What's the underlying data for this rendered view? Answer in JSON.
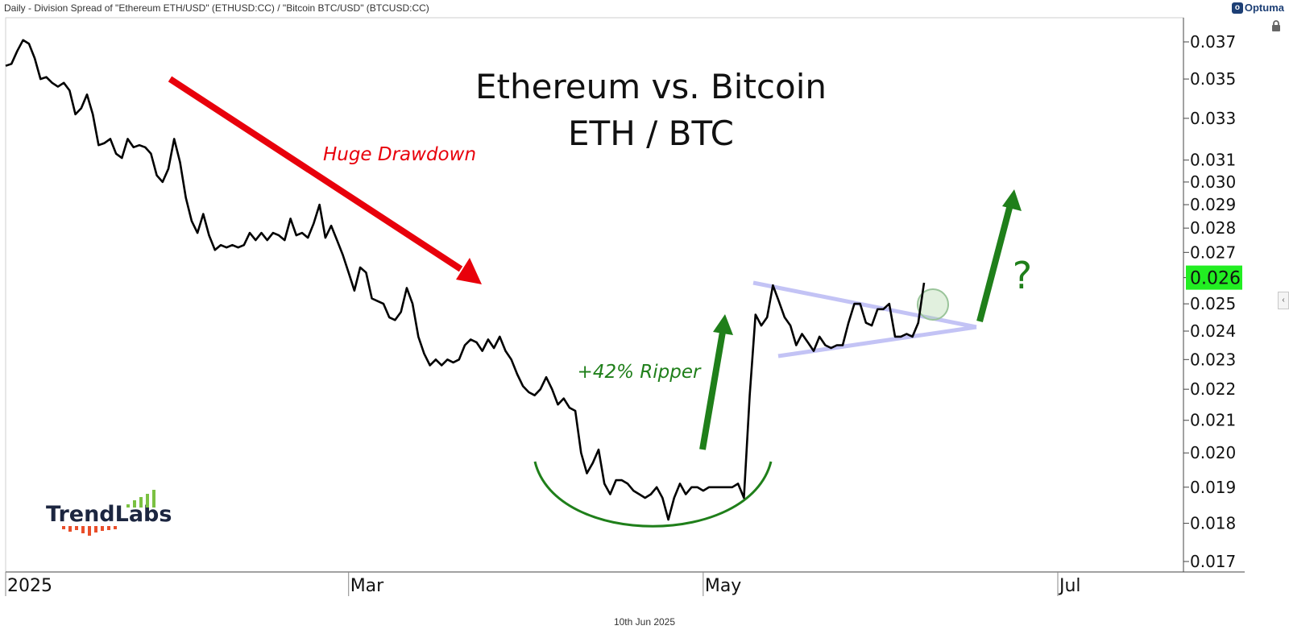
{
  "header": {
    "description": "Daily - Division Spread of \"Ethereum ETH/USD\" (ETHUSD:CC) / \"Bitcoin BTC/USD\" (BTCUSD:CC)",
    "brand": "Optuma",
    "footer_date": "10th Jun 2025"
  },
  "logo": {
    "text": "TrendLabs"
  },
  "chart_data": {
    "type": "line",
    "title": "Ethereum vs. Bitcoin",
    "subtitle": "ETH / BTC",
    "x_axis": {
      "type": "date",
      "labels": [
        "2025",
        "Mar",
        "May",
        "Jul"
      ],
      "label_dates": [
        "2025-01-01",
        "2025-03-01",
        "2025-05-01",
        "2025-07-01"
      ]
    },
    "y_axis": {
      "scale": "log",
      "ticks": [
        "0.017",
        "0.018",
        "0.019",
        "0.020",
        "0.021",
        "0.022",
        "0.023",
        "0.024",
        "0.025",
        "0.026",
        "0.027",
        "0.028",
        "0.029",
        "0.030",
        "0.031",
        "0.033",
        "0.035",
        "0.037"
      ],
      "range": [
        0.0167,
        0.0385
      ]
    },
    "last_value": "0.026",
    "series": [
      {
        "points": [
          [
            "2025-01-01",
            0.0357
          ],
          [
            "2025-01-02",
            0.0358
          ],
          [
            "2025-01-03",
            0.0365
          ],
          [
            "2025-01-04",
            0.0371
          ],
          [
            "2025-01-05",
            0.0369
          ],
          [
            "2025-01-06",
            0.0361
          ],
          [
            "2025-01-07",
            0.035
          ],
          [
            "2025-01-08",
            0.0351
          ],
          [
            "2025-01-09",
            0.0348
          ],
          [
            "2025-01-10",
            0.0346
          ],
          [
            "2025-01-11",
            0.0348
          ],
          [
            "2025-01-12",
            0.0344
          ],
          [
            "2025-01-13",
            0.0332
          ],
          [
            "2025-01-14",
            0.0335
          ],
          [
            "2025-01-15",
            0.0342
          ],
          [
            "2025-01-16",
            0.0332
          ],
          [
            "2025-01-17",
            0.0317
          ],
          [
            "2025-01-18",
            0.0318
          ],
          [
            "2025-01-19",
            0.032
          ],
          [
            "2025-01-20",
            0.0313
          ],
          [
            "2025-01-21",
            0.0311
          ],
          [
            "2025-01-22",
            0.032
          ],
          [
            "2025-01-23",
            0.0316
          ],
          [
            "2025-01-24",
            0.0317
          ],
          [
            "2025-01-25",
            0.0316
          ],
          [
            "2025-01-26",
            0.0313
          ],
          [
            "2025-01-27",
            0.0303
          ],
          [
            "2025-01-28",
            0.03
          ],
          [
            "2025-01-29",
            0.0306
          ],
          [
            "2025-01-30",
            0.032
          ],
          [
            "2025-01-31",
            0.0309
          ],
          [
            "2025-02-01",
            0.0293
          ],
          [
            "2025-02-02",
            0.0283
          ],
          [
            "2025-02-03",
            0.0278
          ],
          [
            "2025-02-04",
            0.0286
          ],
          [
            "2025-02-05",
            0.0277
          ],
          [
            "2025-02-06",
            0.0271
          ],
          [
            "2025-02-07",
            0.0273
          ],
          [
            "2025-02-08",
            0.0272
          ],
          [
            "2025-02-09",
            0.0273
          ],
          [
            "2025-02-10",
            0.0272
          ],
          [
            "2025-02-11",
            0.0273
          ],
          [
            "2025-02-12",
            0.0278
          ],
          [
            "2025-02-13",
            0.0275
          ],
          [
            "2025-02-14",
            0.0278
          ],
          [
            "2025-02-15",
            0.0275
          ],
          [
            "2025-02-16",
            0.0278
          ],
          [
            "2025-02-17",
            0.0277
          ],
          [
            "2025-02-18",
            0.0275
          ],
          [
            "2025-02-19",
            0.0284
          ],
          [
            "2025-02-20",
            0.0277
          ],
          [
            "2025-02-21",
            0.0278
          ],
          [
            "2025-02-22",
            0.0276
          ],
          [
            "2025-02-23",
            0.0282
          ],
          [
            "2025-02-24",
            0.029
          ],
          [
            "2025-02-25",
            0.0276
          ],
          [
            "2025-02-26",
            0.0281
          ],
          [
            "2025-02-27",
            0.0275
          ],
          [
            "2025-02-28",
            0.0269
          ],
          [
            "2025-03-01",
            0.0262
          ],
          [
            "2025-03-02",
            0.0255
          ],
          [
            "2025-03-03",
            0.0264
          ],
          [
            "2025-03-04",
            0.0262
          ],
          [
            "2025-03-05",
            0.0252
          ],
          [
            "2025-03-06",
            0.0251
          ],
          [
            "2025-03-07",
            0.025
          ],
          [
            "2025-03-08",
            0.0245
          ],
          [
            "2025-03-09",
            0.0244
          ],
          [
            "2025-03-10",
            0.0247
          ],
          [
            "2025-03-11",
            0.0256
          ],
          [
            "2025-03-12",
            0.025
          ],
          [
            "2025-03-13",
            0.0238
          ],
          [
            "2025-03-14",
            0.0232
          ],
          [
            "2025-03-15",
            0.0228
          ],
          [
            "2025-03-16",
            0.023
          ],
          [
            "2025-03-17",
            0.0228
          ],
          [
            "2025-03-18",
            0.023
          ],
          [
            "2025-03-19",
            0.0229
          ],
          [
            "2025-03-20",
            0.023
          ],
          [
            "2025-03-21",
            0.0235
          ],
          [
            "2025-03-22",
            0.0237
          ],
          [
            "2025-03-23",
            0.0236
          ],
          [
            "2025-03-24",
            0.0233
          ],
          [
            "2025-03-25",
            0.0237
          ],
          [
            "2025-03-26",
            0.0234
          ],
          [
            "2025-03-27",
            0.0238
          ],
          [
            "2025-03-28",
            0.0233
          ],
          [
            "2025-03-29",
            0.023
          ],
          [
            "2025-03-30",
            0.0225
          ],
          [
            "2025-03-31",
            0.0221
          ],
          [
            "2025-04-01",
            0.0219
          ],
          [
            "2025-04-02",
            0.0218
          ],
          [
            "2025-04-03",
            0.022
          ],
          [
            "2025-04-04",
            0.0224
          ],
          [
            "2025-04-05",
            0.022
          ],
          [
            "2025-04-06",
            0.0215
          ],
          [
            "2025-04-07",
            0.0217
          ],
          [
            "2025-04-08",
            0.0214
          ],
          [
            "2025-04-09",
            0.0213
          ],
          [
            "2025-04-10",
            0.02
          ],
          [
            "2025-04-11",
            0.0194
          ],
          [
            "2025-04-12",
            0.0197
          ],
          [
            "2025-04-13",
            0.0201
          ],
          [
            "2025-04-14",
            0.0191
          ],
          [
            "2025-04-15",
            0.0188
          ],
          [
            "2025-04-16",
            0.0192
          ],
          [
            "2025-04-17",
            0.0192
          ],
          [
            "2025-04-18",
            0.0191
          ],
          [
            "2025-04-19",
            0.0189
          ],
          [
            "2025-04-20",
            0.0188
          ],
          [
            "2025-04-21",
            0.0187
          ],
          [
            "2025-04-22",
            0.0188
          ],
          [
            "2025-04-23",
            0.019
          ],
          [
            "2025-04-24",
            0.0187
          ],
          [
            "2025-04-25",
            0.0181
          ],
          [
            "2025-04-26",
            0.0187
          ],
          [
            "2025-04-27",
            0.0191
          ],
          [
            "2025-04-28",
            0.0188
          ],
          [
            "2025-04-29",
            0.019
          ],
          [
            "2025-04-30",
            0.019
          ],
          [
            "2025-05-01",
            0.0189
          ],
          [
            "2025-05-02",
            0.019
          ],
          [
            "2025-05-03",
            0.019
          ],
          [
            "2025-05-04",
            0.019
          ],
          [
            "2025-05-05",
            0.019
          ],
          [
            "2025-05-06",
            0.019
          ],
          [
            "2025-05-07",
            0.0191
          ],
          [
            "2025-05-08",
            0.0187
          ],
          [
            "2025-05-09",
            0.0218
          ],
          [
            "2025-05-10",
            0.0246
          ],
          [
            "2025-05-11",
            0.0242
          ],
          [
            "2025-05-12",
            0.0245
          ],
          [
            "2025-05-13",
            0.0257
          ],
          [
            "2025-05-14",
            0.0251
          ],
          [
            "2025-05-15",
            0.0245
          ],
          [
            "2025-05-16",
            0.0242
          ],
          [
            "2025-05-17",
            0.0235
          ],
          [
            "2025-05-18",
            0.0239
          ],
          [
            "2025-05-19",
            0.0236
          ],
          [
            "2025-05-20",
            0.0233
          ],
          [
            "2025-05-21",
            0.0238
          ],
          [
            "2025-05-22",
            0.0235
          ],
          [
            "2025-05-23",
            0.0234
          ],
          [
            "2025-05-24",
            0.0235
          ],
          [
            "2025-05-25",
            0.0235
          ],
          [
            "2025-05-26",
            0.0243
          ],
          [
            "2025-05-27",
            0.025
          ],
          [
            "2025-05-28",
            0.025
          ],
          [
            "2025-05-29",
            0.0243
          ],
          [
            "2025-05-30",
            0.0242
          ],
          [
            "2025-05-31",
            0.0248
          ],
          [
            "2025-06-01",
            0.0248
          ],
          [
            "2025-06-02",
            0.025
          ],
          [
            "2025-06-03",
            0.0238
          ],
          [
            "2025-06-04",
            0.0238
          ],
          [
            "2025-06-05",
            0.0239
          ],
          [
            "2025-06-06",
            0.0238
          ],
          [
            "2025-06-07",
            0.0243
          ],
          [
            "2025-06-08",
            0.0258
          ]
        ]
      }
    ],
    "annotations": [
      {
        "text": "Huge Drawdown",
        "color": "#e8000b"
      },
      {
        "text": "+42% Ripper",
        "color": "#1f7f1a"
      },
      {
        "text": "?",
        "color": "#1f7f1a"
      }
    ],
    "colors": {
      "line": "#000000",
      "drawdown_arrow": "#e8000b",
      "green": "#1f7f1a",
      "triangle": "#c3c3f5",
      "last_value_bg": "#22ee22"
    }
  }
}
